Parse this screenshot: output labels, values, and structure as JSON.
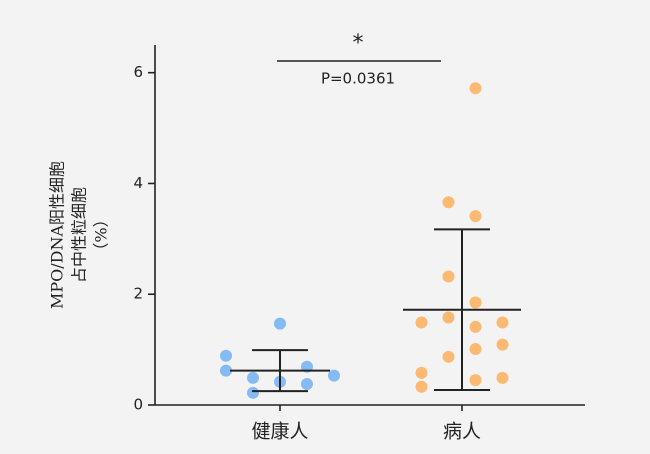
{
  "chart_data": {
    "type": "dot",
    "y_label": [
      "MPO/DNA阳性细胞",
      "占中性粒细胞",
      "（%）"
    ],
    "categories": [
      "健康人",
      "病人"
    ],
    "groups": [
      {
        "color": "#85bbf4",
        "values": [
          1.47,
          0.89,
          0.69,
          0.62,
          0.53,
          0.49,
          0.42,
          0.38,
          0.22
        ],
        "mean": 0.62,
        "sd": 0.37
      },
      {
        "color": "#fbb972",
        "values": [
          5.72,
          3.66,
          3.41,
          2.32,
          1.85,
          1.49,
          1.58,
          1.49,
          1.41,
          1.01,
          1.09,
          0.87,
          0.58,
          0.45,
          0.49,
          0.33
        ],
        "mean": 1.72,
        "sd": 1.45
      }
    ],
    "significance": {
      "star": "*",
      "p": "P=0.0361"
    },
    "ylim": [
      0,
      6.5
    ],
    "yticks": [
      0,
      2,
      4,
      6
    ]
  }
}
